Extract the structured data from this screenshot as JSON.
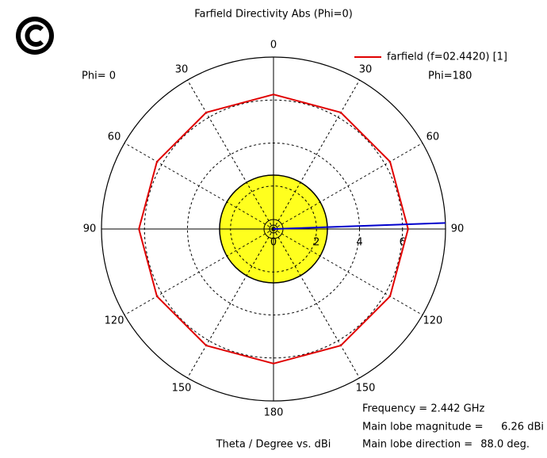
{
  "chart_data": {
    "type": "polar",
    "title": "Farfield Directivity Abs (Phi=0)",
    "axis_label": "Theta / Degree vs. dBi",
    "left_label": "Phi=  0",
    "right_label": "Phi=180",
    "rlim": [
      0,
      8
    ],
    "rticks": [
      0,
      2,
      4,
      6
    ],
    "xticks": [
      0,
      30,
      60,
      90,
      120,
      150,
      180,
      {
        "value": 210,
        "label": "150"
      },
      {
        "value": 240,
        "label": "120"
      },
      {
        "value": 270,
        "label": "90"
      },
      {
        "value": 300,
        "label": "60"
      },
      {
        "value": 330,
        "label": "30"
      }
    ],
    "x": [
      0,
      30,
      60,
      90,
      120,
      150,
      180,
      210,
      240,
      270,
      300,
      330,
      360
    ],
    "series": [
      {
        "name": "farfield (f=02.4420) [1]",
        "color": "#e00000",
        "values": [
          6.26,
          6.26,
          6.26,
          6.26,
          6.26,
          6.26,
          6.26,
          6.26,
          6.26,
          6.26,
          6.26,
          6.26,
          6.26
        ]
      }
    ],
    "main_lobe_color": "#0000cc",
    "frequency": "Frequency = 2.442 GHz",
    "magnitude_text": "Main lobe magnitude =",
    "magnitude": {
      "value": 6.26,
      "label": "6.26 dBi"
    },
    "direction_text": "Main lobe direction =",
    "direction": {
      "value": 88.0,
      "label": "88.0 deg."
    }
  }
}
